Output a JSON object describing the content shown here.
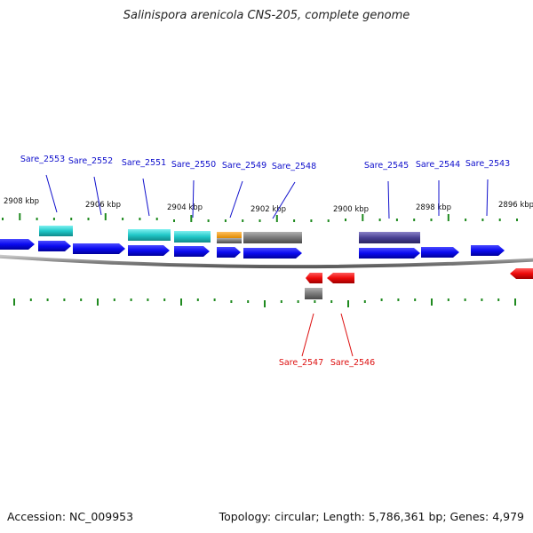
{
  "title": "Salinispora arenicola CNS-205, complete genome",
  "footer": {
    "accession": "Accession: NC_009953",
    "summary": "Topology: circular; Length: 5,786,361 bp; Genes: 4,979"
  },
  "colors": {
    "background": "#ffffff",
    "backbone": "#8a8a8a",
    "forward_gene": "#0a0af0",
    "reverse_gene": "#ee0a0a",
    "tick": "#1f8a1f",
    "label_forward": "#1010cc",
    "label_reverse": "#dd1010"
  },
  "scale_labels": [
    "2908 kbp",
    "2906 kbp",
    "2904 kbp",
    "2902 kbp",
    "2900 kbp",
    "2898 kbp",
    "2896 kbp"
  ],
  "gene_labels": {
    "forward": [
      "Sare_2553",
      "Sare_2552",
      "Sare_2551",
      "Sare_2550",
      "Sare_2549",
      "Sare_2548",
      "Sare_2545",
      "Sare_2544",
      "Sare_2543"
    ],
    "reverse": [
      "Sare_2547",
      "Sare_2546"
    ]
  },
  "feature_colors": [
    "cyan",
    "orange",
    "gray",
    "slate-blue"
  ]
}
